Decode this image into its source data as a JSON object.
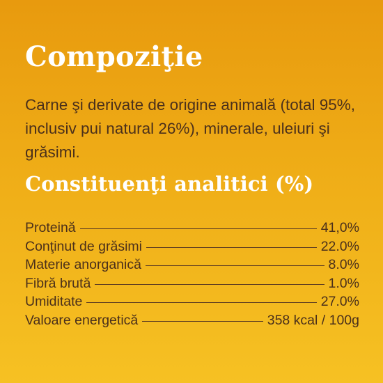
{
  "page": {
    "colors": {
      "background_top": "#e89a0e",
      "background_bottom": "#f6c123",
      "heading": "#ffffff",
      "text": "#4b301b"
    }
  },
  "composition": {
    "title": "Compoziţie",
    "text": "Carne şi derivate de origine animală (total 95%, inclusiv pui natural 26%), minerale, uleiuri şi grăsimi."
  },
  "analytical": {
    "title": "Constituenţi analitici (%)",
    "rows": [
      {
        "label": "Proteină",
        "value": "41,0%"
      },
      {
        "label": "Conţinut de grăsimi",
        "value": "22.0%"
      },
      {
        "label": "Materie anorganică",
        "value": "8.0%"
      },
      {
        "label": "Fibră brută",
        "value": "1.0%"
      },
      {
        "label": "Umiditate",
        "value": "27.0%"
      },
      {
        "label": "Valoare energetică",
        "value": "358 kcal / 100g"
      }
    ]
  }
}
